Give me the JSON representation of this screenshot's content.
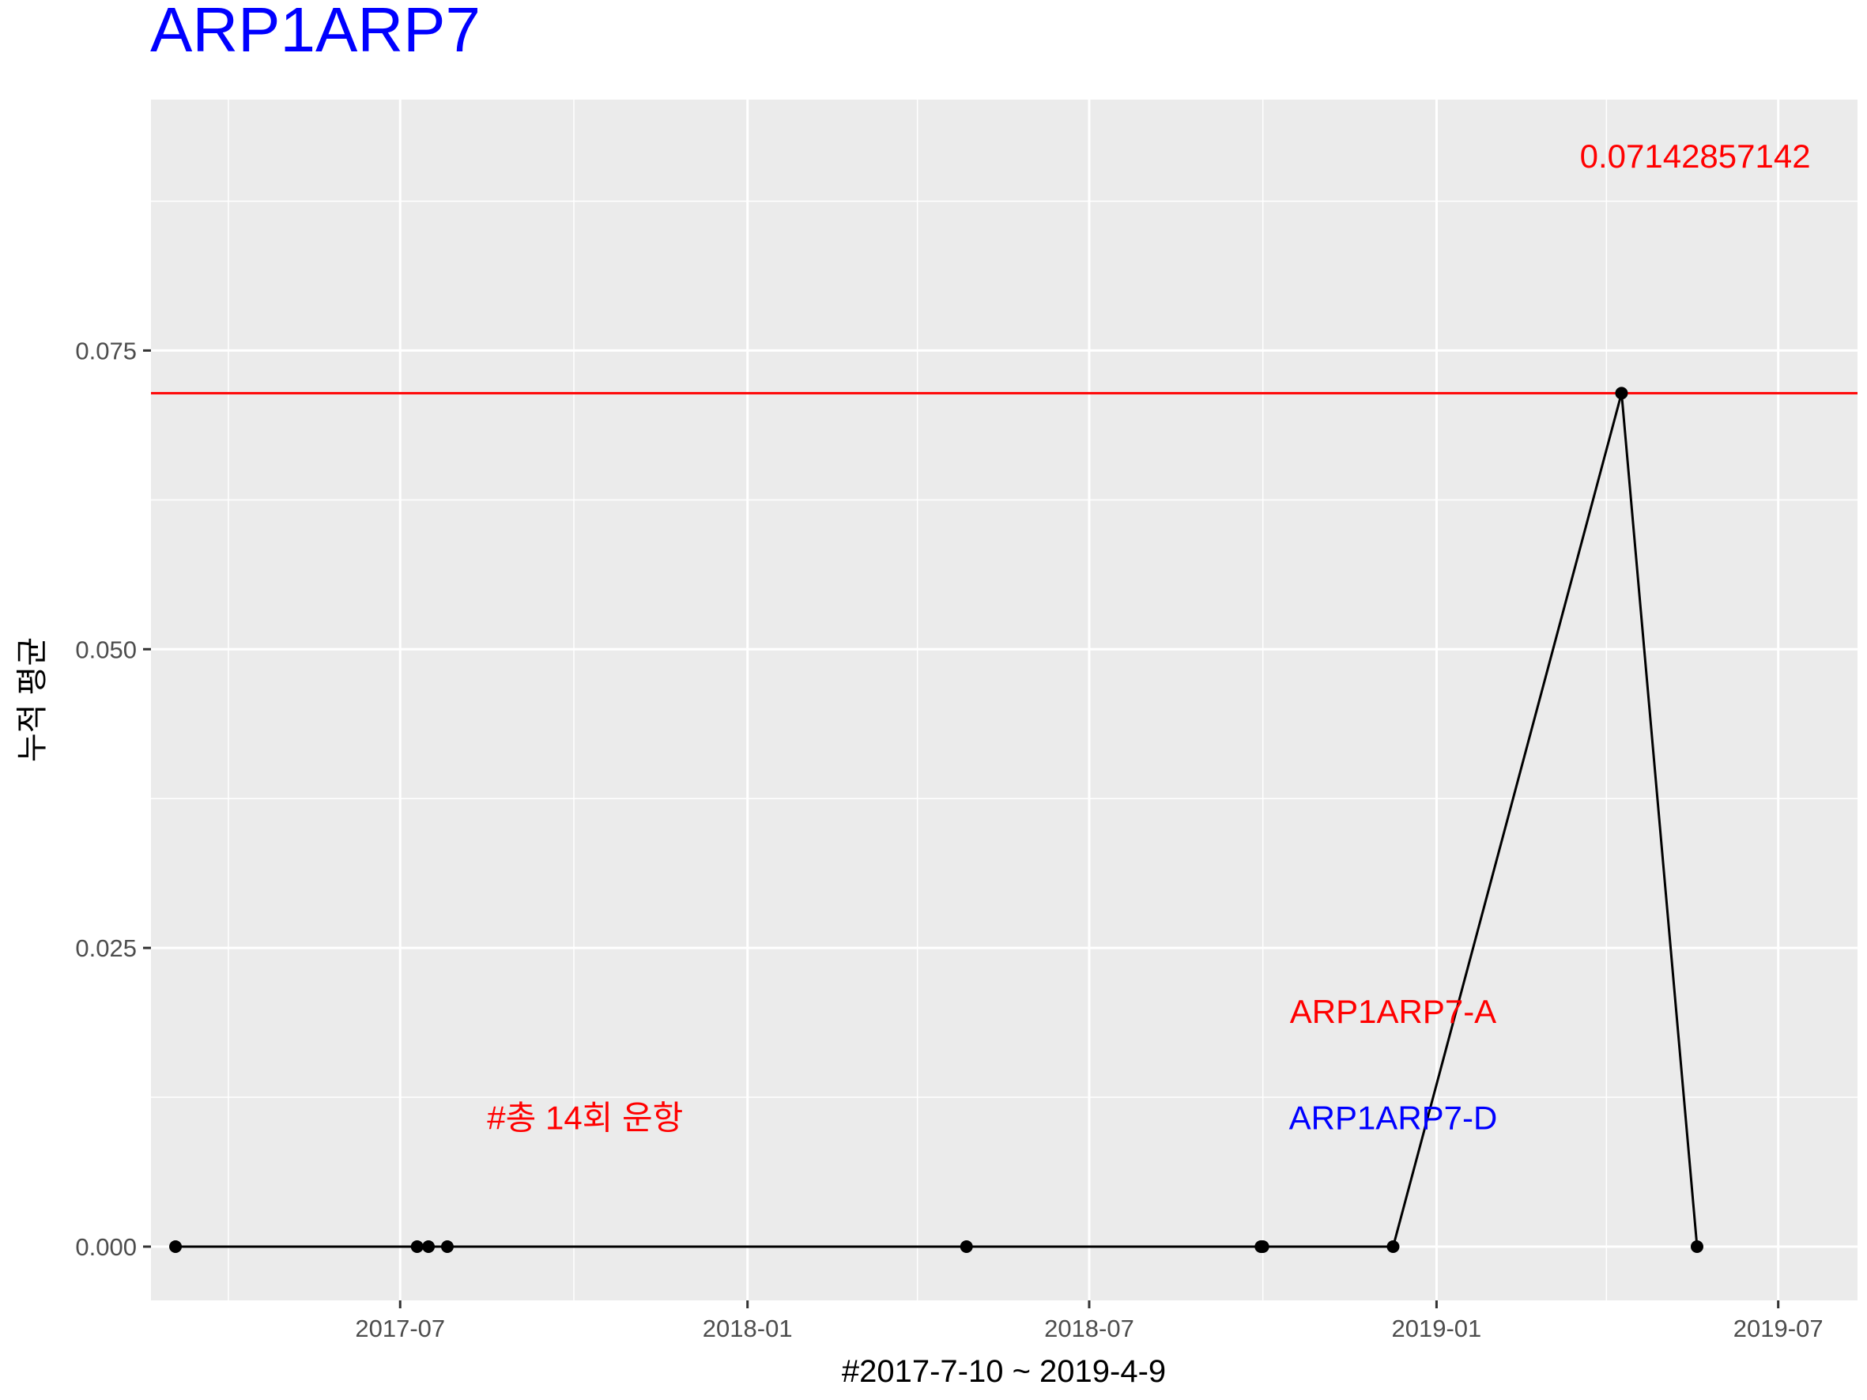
{
  "chart_data": {
    "type": "line",
    "title": "ARP1ARP7",
    "title_color": "#0000ff",
    "xlabel": "#2017-7-10 ~ 2019-4-9",
    "ylabel": "누적 평균",
    "x_ticks": [
      "2017-07",
      "2018-01",
      "2018-07",
      "2019-01",
      "2019-07"
    ],
    "y_ticks": [
      "0.000",
      "0.025",
      "0.050",
      "0.075"
    ],
    "xlim": [
      "2017-02-19",
      "2019-08-12"
    ],
    "ylim": [
      -0.0045,
      0.096
    ],
    "series": [
      {
        "color": "#000000",
        "points": [
          {
            "x": "2017-03-04",
            "y": 0
          },
          {
            "x": "2017-07-10",
            "y": 0
          },
          {
            "x": "2017-07-16",
            "y": 0
          },
          {
            "x": "2017-07-26",
            "y": 0
          },
          {
            "x": "2018-04-27",
            "y": 0
          },
          {
            "x": "2018-09-30",
            "y": 0
          },
          {
            "x": "2018-10-01",
            "y": 0
          },
          {
            "x": "2018-12-09",
            "y": 0
          },
          {
            "x": "2019-04-09",
            "y": 0.07142857142
          },
          {
            "x": "2019-05-19",
            "y": 0
          }
        ]
      }
    ],
    "hline": {
      "y": 0.07142857142,
      "color": "#ff0000"
    },
    "annotations": [
      {
        "text": "0.07142857142",
        "x": "2019-05-18",
        "y": 0.0913,
        "color": "#ff0000"
      },
      {
        "text": "ARP1ARP7-A",
        "x": "2018-12-09",
        "y": 0.0197,
        "color": "#ff0000"
      },
      {
        "text": "ARP1ARP7-D",
        "x": "2018-12-09",
        "y": 0.0108,
        "color": "#0000ff"
      },
      {
        "text": "#총 14회 운항",
        "x": "2017-10-07",
        "y": 0.0108,
        "color": "#ff0000"
      }
    ],
    "panel_background": "#ebebeb",
    "grid": true
  }
}
